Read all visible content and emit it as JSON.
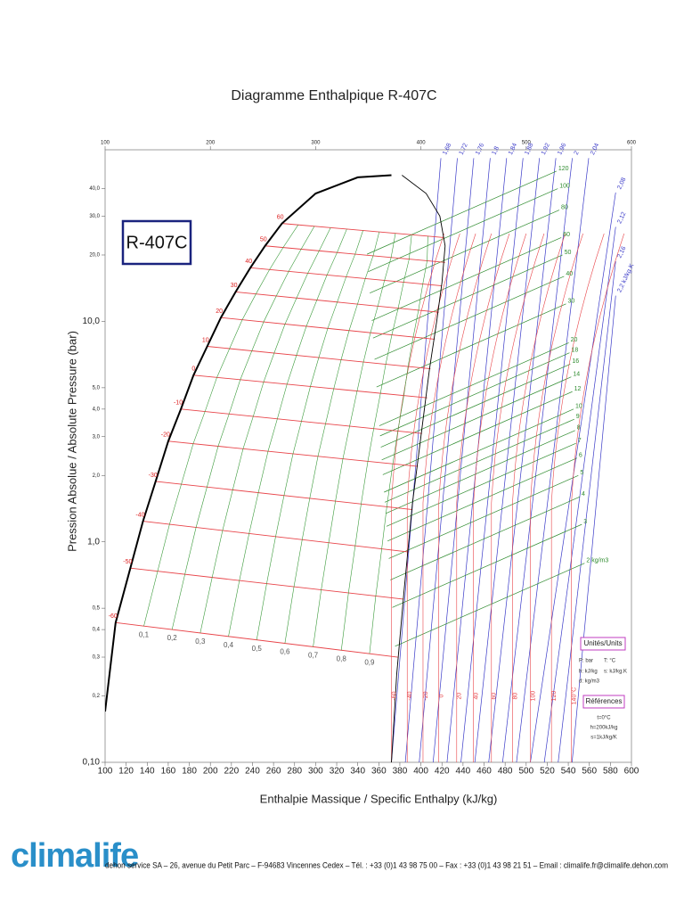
{
  "chart_data": {
    "type": "ph-diagram",
    "title": "Diagramme Enthalpique R-407C",
    "x_label": "Enthalpie Massique / Specific Enthalpy (kJ/kg)",
    "y_label": "Pression Absolue / Absolute Pressure (bar)",
    "log_y": true,
    "xlim": [
      100,
      600
    ],
    "ylim": [
      0.1,
      60
    ],
    "xticks": [
      100,
      120,
      140,
      160,
      180,
      200,
      220,
      240,
      260,
      280,
      300,
      320,
      340,
      360,
      380,
      400,
      420,
      440,
      460,
      480,
      500,
      520,
      540,
      560,
      580,
      600
    ],
    "xticks_top": [
      100,
      200,
      300,
      400,
      500,
      600
    ],
    "yticks": [
      {
        "value": 40,
        "label": "40,0"
      },
      {
        "value": 30,
        "label": "30,0"
      },
      {
        "value": 20,
        "label": "20,0"
      },
      {
        "value": 10,
        "label": "10,0"
      },
      {
        "value": 5,
        "label": "5,0"
      },
      {
        "value": 4,
        "label": "4,0"
      },
      {
        "value": 3,
        "label": "3,0"
      },
      {
        "value": 2,
        "label": "2,0"
      },
      {
        "value": 1,
        "label": "1,0"
      },
      {
        "value": 0.5,
        "label": "0,5"
      },
      {
        "value": 0.4,
        "label": "0,4"
      },
      {
        "value": 0.3,
        "label": "0,3"
      },
      {
        "value": 0.2,
        "label": "0,2"
      },
      {
        "value": 0.1,
        "label": "0,10"
      }
    ],
    "saturation_liquid": {
      "h": [
        100,
        110,
        124,
        136,
        148,
        160,
        172,
        184,
        197,
        210,
        224,
        238,
        252,
        268,
        300,
        340,
        372
      ],
      "p": [
        0.17,
        0.43,
        0.76,
        1.24,
        1.88,
        2.86,
        4.0,
        5.7,
        7.7,
        10.4,
        13.6,
        17.5,
        22,
        27.8,
        38,
        45,
        46
      ]
    },
    "saturation_vapor": {
      "h": [
        382,
        405,
        418,
        423,
        420,
        415,
        408,
        400,
        392,
        384,
        377,
        372
      ],
      "p": [
        46,
        38,
        30,
        22,
        15,
        10,
        6,
        3,
        1.5,
        0.6,
        0.25,
        0.1
      ]
    },
    "isotherms": [
      {
        "t": -60,
        "h": [
          110,
          378
        ],
        "p": [
          0.43,
          0.3
        ]
      },
      {
        "t": -50,
        "h": [
          124,
          383
        ],
        "p": [
          0.76,
          0.55
        ]
      },
      {
        "t": -40,
        "h": [
          136,
          388
        ],
        "p": [
          1.24,
          0.9
        ]
      },
      {
        "t": -30,
        "h": [
          148,
          392
        ],
        "p": [
          1.88,
          1.4
        ]
      },
      {
        "t": -20,
        "h": [
          160,
          397
        ],
        "p": [
          2.86,
          2.2
        ]
      },
      {
        "t": -10,
        "h": [
          172,
          401
        ],
        "p": [
          4.0,
          3.1
        ]
      },
      {
        "t": 0,
        "h": [
          184,
          406
        ],
        "p": [
          5.7,
          4.5
        ]
      },
      {
        "t": 10,
        "h": [
          197,
          409
        ],
        "p": [
          7.7,
          6.1
        ]
      },
      {
        "t": 20,
        "h": [
          210,
          413
        ],
        "p": [
          10.4,
          8.3
        ]
      },
      {
        "t": 30,
        "h": [
          224,
          417
        ],
        "p": [
          13.6,
          11
        ]
      },
      {
        "t": 40,
        "h": [
          238,
          420
        ],
        "p": [
          17.5,
          14.5
        ]
      },
      {
        "t": 50,
        "h": [
          252,
          423
        ],
        "p": [
          22,
          18.5
        ]
      },
      {
        "t": 60,
        "h": [
          268,
          422
        ],
        "p": [
          27.8,
          24
        ]
      }
    ],
    "qualities": [
      {
        "value": 0.1,
        "label": "0,1"
      },
      {
        "value": 0.2,
        "label": "0,2"
      },
      {
        "value": 0.3,
        "label": "0,3"
      },
      {
        "value": 0.4,
        "label": "0,4"
      },
      {
        "value": 0.5,
        "label": "0,5"
      },
      {
        "value": 0.6,
        "label": "0,6"
      },
      {
        "value": 0.7,
        "label": "0,7"
      },
      {
        "value": 0.8,
        "label": "0,8"
      },
      {
        "value": 0.9,
        "label": "0,9"
      }
    ],
    "vapor_isotherms": [
      {
        "t": -60,
        "h": 372
      },
      {
        "t": -40,
        "h": 387
      },
      {
        "t": -20,
        "h": 402
      },
      {
        "t": 0,
        "h": 417
      },
      {
        "t": 20,
        "h": 434
      },
      {
        "t": 40,
        "h": 450
      },
      {
        "t": 60,
        "h": 467
      },
      {
        "t": 80,
        "h": 487
      },
      {
        "t": 100,
        "h": 504
      },
      {
        "t": 120,
        "h": 524
      },
      {
        "t": {
          "value": 140,
          "label": "140°C"
        },
        "h": 543
      }
    ],
    "isentropes": [
      {
        "value": 1.68,
        "label": "1,68"
      },
      {
        "value": 1.72,
        "label": "1,72"
      },
      {
        "value": 1.76,
        "label": "1,76"
      },
      {
        "value": 1.8,
        "label": "1,8"
      },
      {
        "value": 1.84,
        "label": "1,84"
      },
      {
        "value": 1.88,
        "label": "1,88"
      },
      {
        "value": 1.92,
        "label": "1,92"
      },
      {
        "value": 1.96,
        "label": "1,96"
      },
      {
        "value": 2,
        "label": "2"
      },
      {
        "value": 2.04,
        "label": "2,04"
      },
      {
        "value": 2.08,
        "label": "2,08"
      },
      {
        "value": 2.12,
        "label": "2,12"
      },
      {
        "value": 2.16,
        "label": "2,16"
      },
      {
        "value": 2.2,
        "label": "2,2 kJ/kg.K"
      }
    ],
    "isochores": [
      120,
      100,
      80,
      60,
      50,
      40,
      30,
      20,
      18,
      16,
      14,
      12,
      10,
      9,
      8,
      7,
      6,
      5,
      4,
      3,
      {
        "value": 2,
        "label": "2 kg/m3"
      }
    ],
    "colors": {
      "saturation": "#000000",
      "isotherm": "#e8454a",
      "quality": "#3a9a3a",
      "isentrope": "#3a3ac8",
      "isochore": "#2e8b2e"
    }
  },
  "refrigerant_label": "R-407C",
  "units_box": {
    "title": "Unités/Units",
    "lines": [
      "P: bar",
      "T: °C",
      "h: kJ/kg",
      "s: kJ/kg.K",
      "d: kg/m3"
    ]
  },
  "references_box": {
    "title": "Références",
    "lines": [
      "t=0°C",
      "h=200kJ/kg",
      "s=1kJ/kg/K"
    ]
  },
  "footer": {
    "brand": "climalife",
    "address": "dehon service SA – 26, avenue du Petit Parc – F-94683 Vincennes Cedex – Tél. : +33 (0)1 43 98 75 00 – Fax : +33 (0)1 43 98 21 51 – Email : climalife.fr@climalife.dehon.com"
  }
}
